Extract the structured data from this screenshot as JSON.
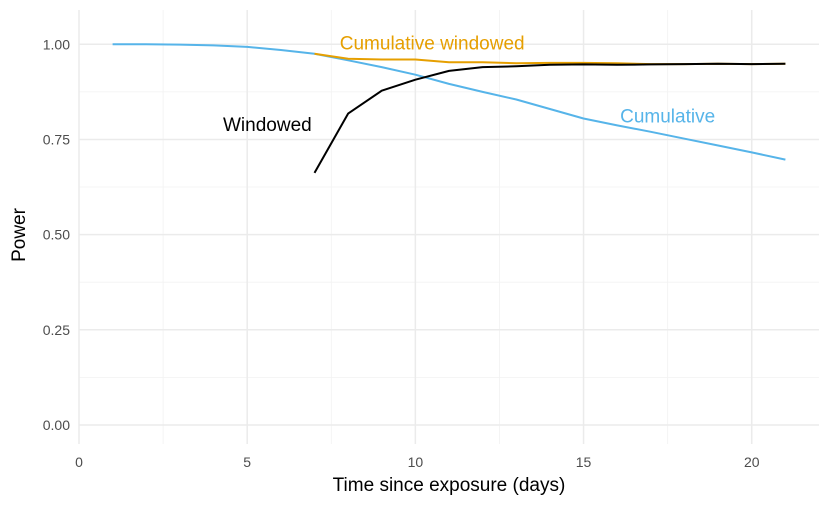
{
  "chart_data": {
    "type": "line",
    "title": "",
    "xlabel": "Time since exposure (days)",
    "ylabel": "Power",
    "xlim": [
      0,
      22
    ],
    "ylim": [
      -0.05,
      1.09
    ],
    "x_ticks": [
      0,
      5,
      10,
      15,
      20
    ],
    "x_tick_labels": [
      "0",
      "5",
      "10",
      "15",
      "20"
    ],
    "y_ticks": [
      0,
      0.25,
      0.5,
      0.75,
      1
    ],
    "y_tick_labels": [
      "0.00",
      "0.25",
      "0.50",
      "0.75",
      "1.00"
    ],
    "grid": true,
    "legend": "none",
    "series": [
      {
        "name": "Cumulative",
        "color": "#56B4E9",
        "label_at": [
          17.5,
          0.813
        ],
        "x": [
          1,
          2,
          3,
          4,
          5,
          6,
          7,
          8,
          9,
          10,
          11,
          12,
          13,
          14,
          15,
          16,
          17,
          18,
          19,
          20,
          21
        ],
        "y": [
          1.0,
          1.0,
          0.999,
          0.997,
          0.993,
          0.985,
          0.975,
          0.958,
          0.94,
          0.92,
          0.896,
          0.875,
          0.855,
          0.83,
          0.805,
          0.787,
          0.77,
          0.752,
          0.734,
          0.716,
          0.697
        ]
      },
      {
        "name": "Cumulative windowed",
        "color": "#E69F00",
        "label_at": [
          10.5,
          1.005
        ],
        "x": [
          7,
          8,
          9,
          10,
          11,
          12,
          13,
          14,
          15,
          16,
          17,
          18,
          19,
          20,
          21
        ],
        "y": [
          0.975,
          0.962,
          0.96,
          0.96,
          0.953,
          0.953,
          0.95,
          0.951,
          0.951,
          0.95,
          0.948,
          0.948,
          0.949,
          0.948,
          0.949
        ]
      },
      {
        "name": "Windowed",
        "color": "#000000",
        "label_at": [
          5.6,
          0.79
        ],
        "x": [
          7,
          8,
          9,
          10,
          11,
          12,
          13,
          14,
          15,
          16,
          17,
          18,
          19,
          20,
          21
        ],
        "y": [
          0.662,
          0.818,
          0.878,
          0.907,
          0.93,
          0.94,
          0.942,
          0.946,
          0.947,
          0.946,
          0.947,
          0.948,
          0.949,
          0.948,
          0.949
        ]
      }
    ]
  }
}
